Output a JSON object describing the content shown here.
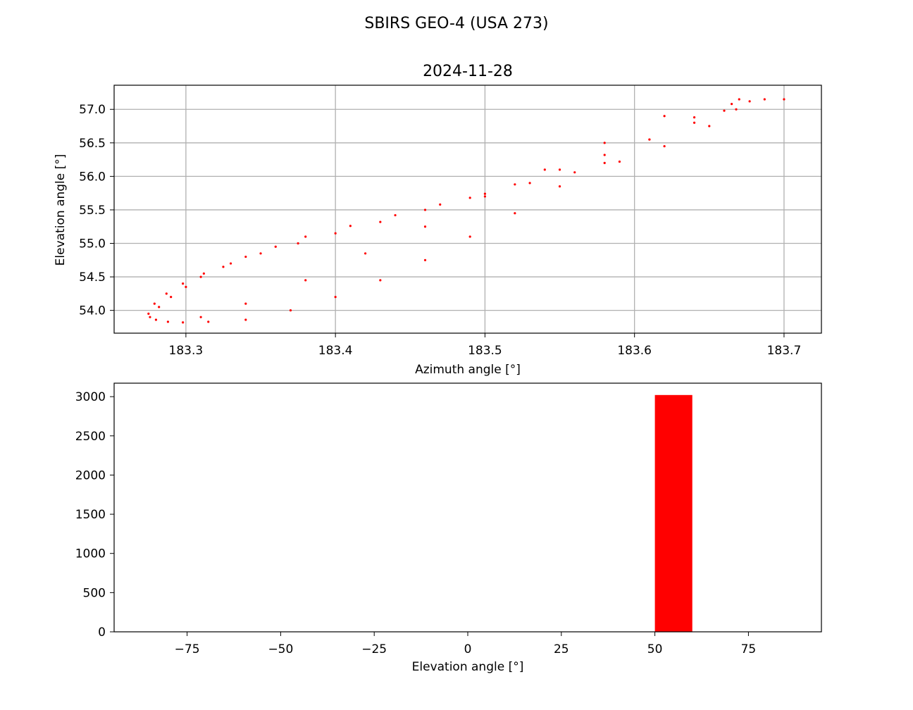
{
  "figure": {
    "suptitle": "SBIRS GEO-4 (USA 273)"
  },
  "colors": {
    "marker": "#ff0000",
    "grid": "#b0b0b0",
    "axis": "#000000"
  },
  "chart_data": [
    {
      "type": "scatter",
      "title": "2024-11-28",
      "xlabel": "Azimuth angle [°]",
      "ylabel": "Elevation angle [°]",
      "xlim": [
        183.252,
        183.725
      ],
      "ylim": [
        53.66,
        57.36
      ],
      "xticks": [
        183.3,
        183.4,
        183.5,
        183.6,
        183.7
      ],
      "xtick_labels": [
        "183.3",
        "183.4",
        "183.5",
        "183.6",
        "183.7"
      ],
      "yticks": [
        54.0,
        54.5,
        55.0,
        55.5,
        56.0,
        56.5,
        57.0
      ],
      "ytick_labels": [
        "54.0",
        "54.5",
        "55.0",
        "55.5",
        "56.0",
        "56.5",
        "57.0"
      ],
      "grid": true,
      "marker": "dot",
      "color": "#ff0000",
      "series": [
        {
          "x": [
            183.275,
            183.279,
            183.287,
            183.298,
            183.312,
            183.33,
            183.35,
            183.375,
            183.4,
            183.43,
            183.46,
            183.49,
            183.52,
            183.55,
            183.58,
            183.61,
            183.64,
            183.66,
            183.67,
            183.665,
            183.64,
            183.61,
            183.58,
            183.55,
            183.52,
            183.49,
            183.46,
            183.43,
            183.4,
            183.37,
            183.34,
            183.315,
            183.298,
            183.288,
            183.28,
            183.276,
            183.282,
            183.29,
            183.3,
            183.31,
            183.325,
            183.34,
            183.36,
            183.38,
            183.41,
            183.44,
            183.47,
            183.5,
            183.53,
            183.56,
            183.59,
            183.62,
            183.65,
            183.668,
            183.677,
            183.687,
            183.7,
            183.62,
            183.58,
            183.54,
            183.5,
            183.46,
            183.42,
            183.38,
            183.34,
            183.31
          ],
          "y": [
            53.95,
            54.1,
            54.25,
            54.4,
            54.55,
            54.7,
            54.85,
            55.0,
            55.15,
            55.32,
            55.5,
            55.68,
            55.88,
            56.1,
            56.32,
            56.55,
            56.8,
            56.98,
            57.15,
            57.08,
            56.88,
            56.55,
            56.2,
            55.85,
            55.45,
            55.1,
            54.75,
            54.45,
            54.2,
            54.0,
            53.86,
            53.83,
            53.82,
            53.83,
            53.86,
            53.9,
            54.05,
            54.2,
            54.35,
            54.5,
            54.65,
            54.8,
            54.95,
            55.1,
            55.26,
            55.42,
            55.58,
            55.74,
            55.9,
            56.06,
            56.22,
            56.45,
            56.75,
            57.0,
            57.12,
            57.15,
            57.15,
            56.9,
            56.5,
            56.1,
            55.7,
            55.25,
            54.85,
            54.45,
            54.1,
            53.9
          ]
        }
      ]
    },
    {
      "type": "bar",
      "title": "",
      "xlabel": "Elevation angle [°]",
      "ylabel": "",
      "xlim": [
        -94.5,
        94.5
      ],
      "ylim": [
        0,
        3172
      ],
      "xticks": [
        -75,
        -50,
        -25,
        0,
        25,
        50,
        75
      ],
      "xtick_labels": [
        "−75",
        "−50",
        "−25",
        "0",
        "25",
        "50",
        "75"
      ],
      "yticks": [
        0,
        500,
        1000,
        1500,
        2000,
        2500,
        3000
      ],
      "ytick_labels": [
        "0",
        "500",
        "1000",
        "1500",
        "2000",
        "2500",
        "3000"
      ],
      "grid": false,
      "color": "#ff0000",
      "bins": [
        {
          "start": 50,
          "end": 60,
          "count": 3021
        }
      ]
    }
  ]
}
